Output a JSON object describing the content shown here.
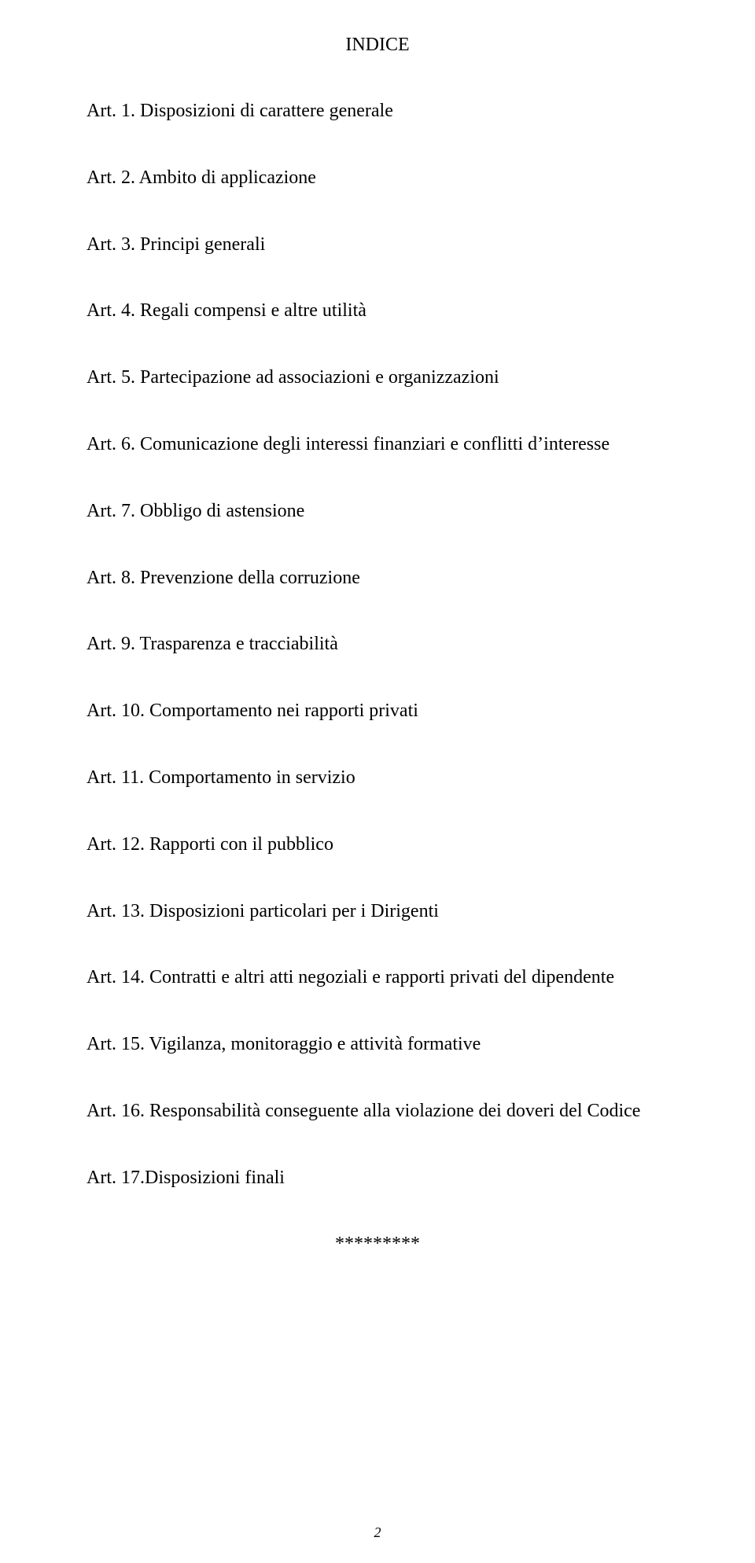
{
  "heading": "INDICE",
  "entries": [
    "Art. 1. Disposizioni di carattere generale",
    "Art. 2. Ambito di applicazione",
    "Art. 3. Principi generali",
    "Art. 4. Regali compensi e altre utilità",
    "Art. 5. Partecipazione ad associazioni e organizzazioni",
    "Art. 6. Comunicazione degli interessi finanziari e conflitti d’interesse",
    "Art. 7. Obbligo di astensione",
    "Art. 8. Prevenzione della corruzione",
    "Art. 9. Trasparenza e tracciabilità",
    "Art. 10. Comportamento nei rapporti privati",
    "Art. 11. Comportamento in servizio",
    "Art. 12. Rapporti con il pubblico",
    "Art. 13. Disposizioni particolari per i Dirigenti",
    "Art. 14. Contratti e altri atti negoziali e rapporti privati del dipendente",
    "Art. 15. Vigilanza, monitoraggio e attività formative",
    "Art. 16. Responsabilità conseguente alla violazione dei doveri del Codice",
    "Art. 17.Disposizioni finali"
  ],
  "separator": "*********",
  "page_number": "2",
  "text_color": "#000000",
  "background_color": "#ffffff",
  "font_size_pt": 18
}
